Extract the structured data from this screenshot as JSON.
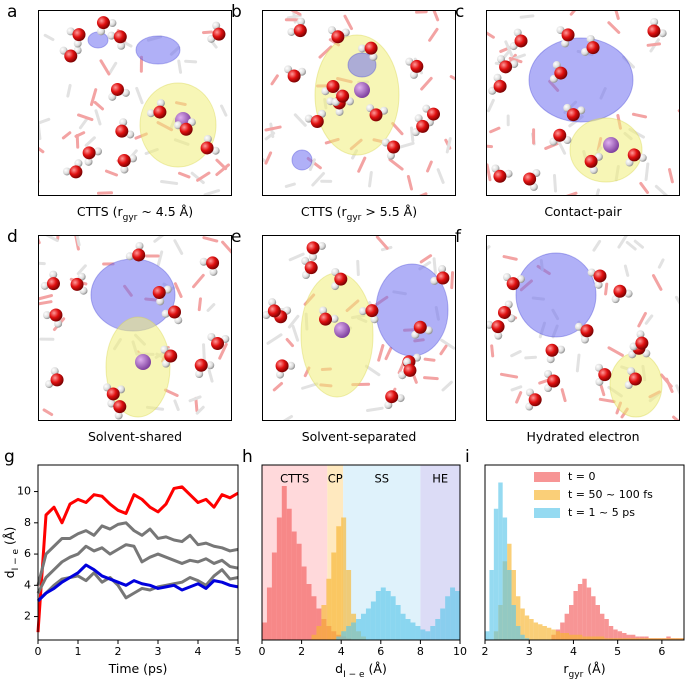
{
  "panels": [
    {
      "letter": "a",
      "caption": [
        "CTTS (r",
        "gyr",
        " ~ 4.5 Å)"
      ]
    },
    {
      "letter": "b",
      "caption": [
        "CTTS (r",
        "gyr",
        " > 5.5 Å)"
      ]
    },
    {
      "letter": "c",
      "caption": [
        "Contact-pair"
      ]
    },
    {
      "letter": "d",
      "caption": [
        "Solvent-shared"
      ]
    },
    {
      "letter": "e",
      "caption": [
        "Solvent-separated"
      ]
    },
    {
      "letter": "f",
      "caption": [
        "Hydrated electron"
      ]
    }
  ],
  "chart_data": [
    {
      "letter": "g",
      "type": "line",
      "x": [
        0,
        0.2,
        0.4,
        0.6,
        0.8,
        1.0,
        1.2,
        1.4,
        1.6,
        1.8,
        2.0,
        2.2,
        2.4,
        2.6,
        2.8,
        3.0,
        3.2,
        3.4,
        3.6,
        3.8,
        4.0,
        4.2,
        4.4,
        4.6,
        4.8,
        5.0
      ],
      "series": [
        {
          "color": "#ff0000",
          "values": [
            1,
            8.5,
            9,
            8,
            9.2,
            9.5,
            9.3,
            9.8,
            9.7,
            9.2,
            8.8,
            8.6,
            9.8,
            9.5,
            9.0,
            8.7,
            9.2,
            10.2,
            10.3,
            9.8,
            9.3,
            9.5,
            9.0,
            9.8,
            9.6,
            9.9
          ]
        },
        {
          "color": "#777777",
          "values": [
            4,
            6,
            6.5,
            7,
            7,
            7.3,
            7.5,
            7.2,
            7.8,
            7.6,
            7.9,
            8.0,
            7.5,
            7.2,
            7.6,
            7.0,
            7.1,
            6.9,
            6.8,
            7.2,
            6.6,
            6.7,
            6.5,
            6.4,
            6.2,
            6.3
          ]
        },
        {
          "color": "#777777",
          "values": [
            3.5,
            4.5,
            5,
            5.5,
            5.8,
            6,
            6.5,
            6.2,
            6.4,
            6.0,
            6.3,
            6.6,
            6.5,
            5.5,
            5.8,
            6.0,
            5.8,
            5.6,
            5.4,
            5.6,
            5.5,
            5.7,
            5.4,
            5.6,
            5.2,
            5.1
          ]
        },
        {
          "color": "#777777",
          "values": [
            3,
            3.5,
            4,
            4.4,
            4.5,
            4.6,
            4.3,
            4.8,
            4.2,
            4.5,
            4.0,
            3.2,
            3.5,
            3.8,
            3.7,
            3.9,
            4.0,
            4.1,
            4.2,
            4.5,
            4.3,
            4.0,
            4.6,
            5.0,
            4.4,
            4.5
          ]
        },
        {
          "color": "#0000dd",
          "values": [
            3,
            3.5,
            3.8,
            4.2,
            4.5,
            4.8,
            5.3,
            5.0,
            4.6,
            4.4,
            4.2,
            4.0,
            4.3,
            4.1,
            4.0,
            3.8,
            3.9,
            4.0,
            3.7,
            3.9,
            4.1,
            3.8,
            4.3,
            4.2,
            4.0,
            3.9
          ]
        }
      ],
      "xlim": [
        0,
        5
      ],
      "xticks": [
        0,
        1,
        2,
        3,
        4,
        5
      ],
      "ylim": [
        0.5,
        11.7
      ],
      "yticks": [
        2,
        4,
        6,
        8,
        10
      ],
      "xlabel": [
        "Time (ps)"
      ],
      "ylabel": [
        "d",
        "I − e",
        " (Å)"
      ]
    },
    {
      "letter": "h",
      "type": "histogram",
      "bins": [
        0,
        0.25,
        0.5,
        0.75,
        1,
        1.25,
        1.5,
        1.75,
        2,
        2.25,
        2.5,
        2.75,
        3,
        3.25,
        3.5,
        3.75,
        4,
        4.25,
        4.5,
        4.75,
        5,
        5.25,
        5.5,
        5.75,
        6,
        6.25,
        6.5,
        6.75,
        7,
        7.25,
        7.5,
        7.75,
        8,
        8.25,
        8.5,
        8.75,
        9,
        9.25,
        9.5,
        9.75,
        10
      ],
      "series": [
        {
          "color": "#f25c5c",
          "values": [
            10,
            30,
            50,
            70,
            88,
            75,
            62,
            55,
            42,
            32,
            25,
            18,
            12,
            8,
            5,
            3,
            2,
            1,
            0,
            0,
            0,
            0,
            0,
            0,
            0,
            0,
            0,
            0,
            0,
            0,
            0,
            0,
            0,
            0,
            0,
            0,
            0,
            0,
            0,
            0
          ]
        },
        {
          "color": "#f8b530",
          "values": [
            0,
            0,
            0,
            0,
            0,
            0,
            0,
            0,
            0,
            0,
            3,
            8,
            20,
            35,
            50,
            65,
            70,
            40,
            15,
            5,
            2,
            0,
            0,
            0,
            0,
            0,
            0,
            0,
            0,
            0,
            0,
            0,
            0,
            0,
            0,
            0,
            0,
            0,
            0,
            0
          ]
        },
        {
          "color": "#5cc6ea",
          "values": [
            0,
            0,
            0,
            0,
            0,
            0,
            0,
            0,
            0,
            0,
            0,
            0,
            0,
            0,
            0,
            2,
            5,
            8,
            10,
            12,
            15,
            18,
            22,
            28,
            30,
            28,
            25,
            20,
            15,
            12,
            10,
            8,
            6,
            5,
            8,
            12,
            18,
            25,
            30,
            28
          ]
        }
      ],
      "regions": [
        {
          "label": "CTTS",
          "range": [
            0,
            3.3
          ],
          "color": "#ffd9db"
        },
        {
          "label": "CP",
          "range": [
            3.3,
            4.1
          ],
          "color": "#ffe9bf"
        },
        {
          "label": "SS",
          "range": [
            4.1,
            8
          ],
          "color": "#dff2fb"
        },
        {
          "label": "HE",
          "range": [
            8,
            10
          ],
          "color": "#dcdcf6"
        }
      ],
      "xlim": [
        0,
        10
      ],
      "xticks": [
        0,
        2,
        4,
        6,
        8,
        10
      ],
      "ylim": [
        0,
        100
      ],
      "xlabel": [
        "d",
        "I − e",
        " (Å)"
      ]
    },
    {
      "letter": "i",
      "type": "histogram",
      "bins": [
        2,
        2.1,
        2.2,
        2.3,
        2.4,
        2.5,
        2.6,
        2.7,
        2.8,
        2.9,
        3,
        3.1,
        3.2,
        3.3,
        3.4,
        3.5,
        3.6,
        3.7,
        3.8,
        3.9,
        4,
        4.1,
        4.2,
        4.3,
        4.4,
        4.5,
        4.6,
        4.7,
        4.8,
        4.9,
        5,
        5.1,
        5.2,
        5.3,
        5.4,
        5.5,
        5.6,
        5.7,
        5.8,
        5.9,
        6,
        6.1,
        6.2,
        6.3,
        6.4,
        6.5
      ],
      "series": [
        {
          "name": "t = 0",
          "color": "#f25c5c",
          "values": [
            0,
            0,
            0,
            0,
            0,
            0,
            0,
            0,
            0,
            0,
            0,
            0,
            0,
            0,
            0,
            3,
            6,
            10,
            15,
            20,
            28,
            32,
            35,
            30,
            25,
            20,
            15,
            12,
            8,
            6,
            5,
            4,
            3,
            3,
            2,
            2,
            2,
            1,
            1,
            1,
            1,
            2,
            1,
            1,
            1
          ]
        },
        {
          "name": "t = 50 ~ 100 fs",
          "color": "#f8b530",
          "values": [
            0,
            0,
            5,
            20,
            45,
            55,
            40,
            25,
            18,
            14,
            12,
            10,
            9,
            8,
            7,
            6,
            5,
            4,
            4,
            3,
            3,
            3,
            2,
            2,
            2,
            2,
            2,
            1,
            1,
            1,
            1,
            1,
            1,
            1,
            1,
            1,
            1,
            1,
            1,
            1,
            1,
            1,
            1,
            1,
            1
          ]
        },
        {
          "name": "t = 1 ~ 5 ps",
          "color": "#5cc6ea",
          "values": [
            5,
            40,
            75,
            90,
            70,
            40,
            20,
            8,
            3,
            1,
            0,
            0,
            0,
            0,
            0,
            0,
            0,
            0,
            0,
            0,
            0,
            0,
            0,
            0,
            0,
            0,
            0,
            0,
            0,
            0,
            0,
            0,
            0,
            0,
            0,
            0,
            0,
            0,
            0,
            0,
            0,
            0,
            0,
            0,
            0
          ]
        }
      ],
      "xlim": [
        2,
        6.5
      ],
      "xticks": [
        2,
        3,
        4,
        5,
        6
      ],
      "ylim": [
        0,
        100
      ],
      "xlabel": [
        "r",
        "gyr",
        " (Å)"
      ],
      "legend": "upper right"
    }
  ]
}
